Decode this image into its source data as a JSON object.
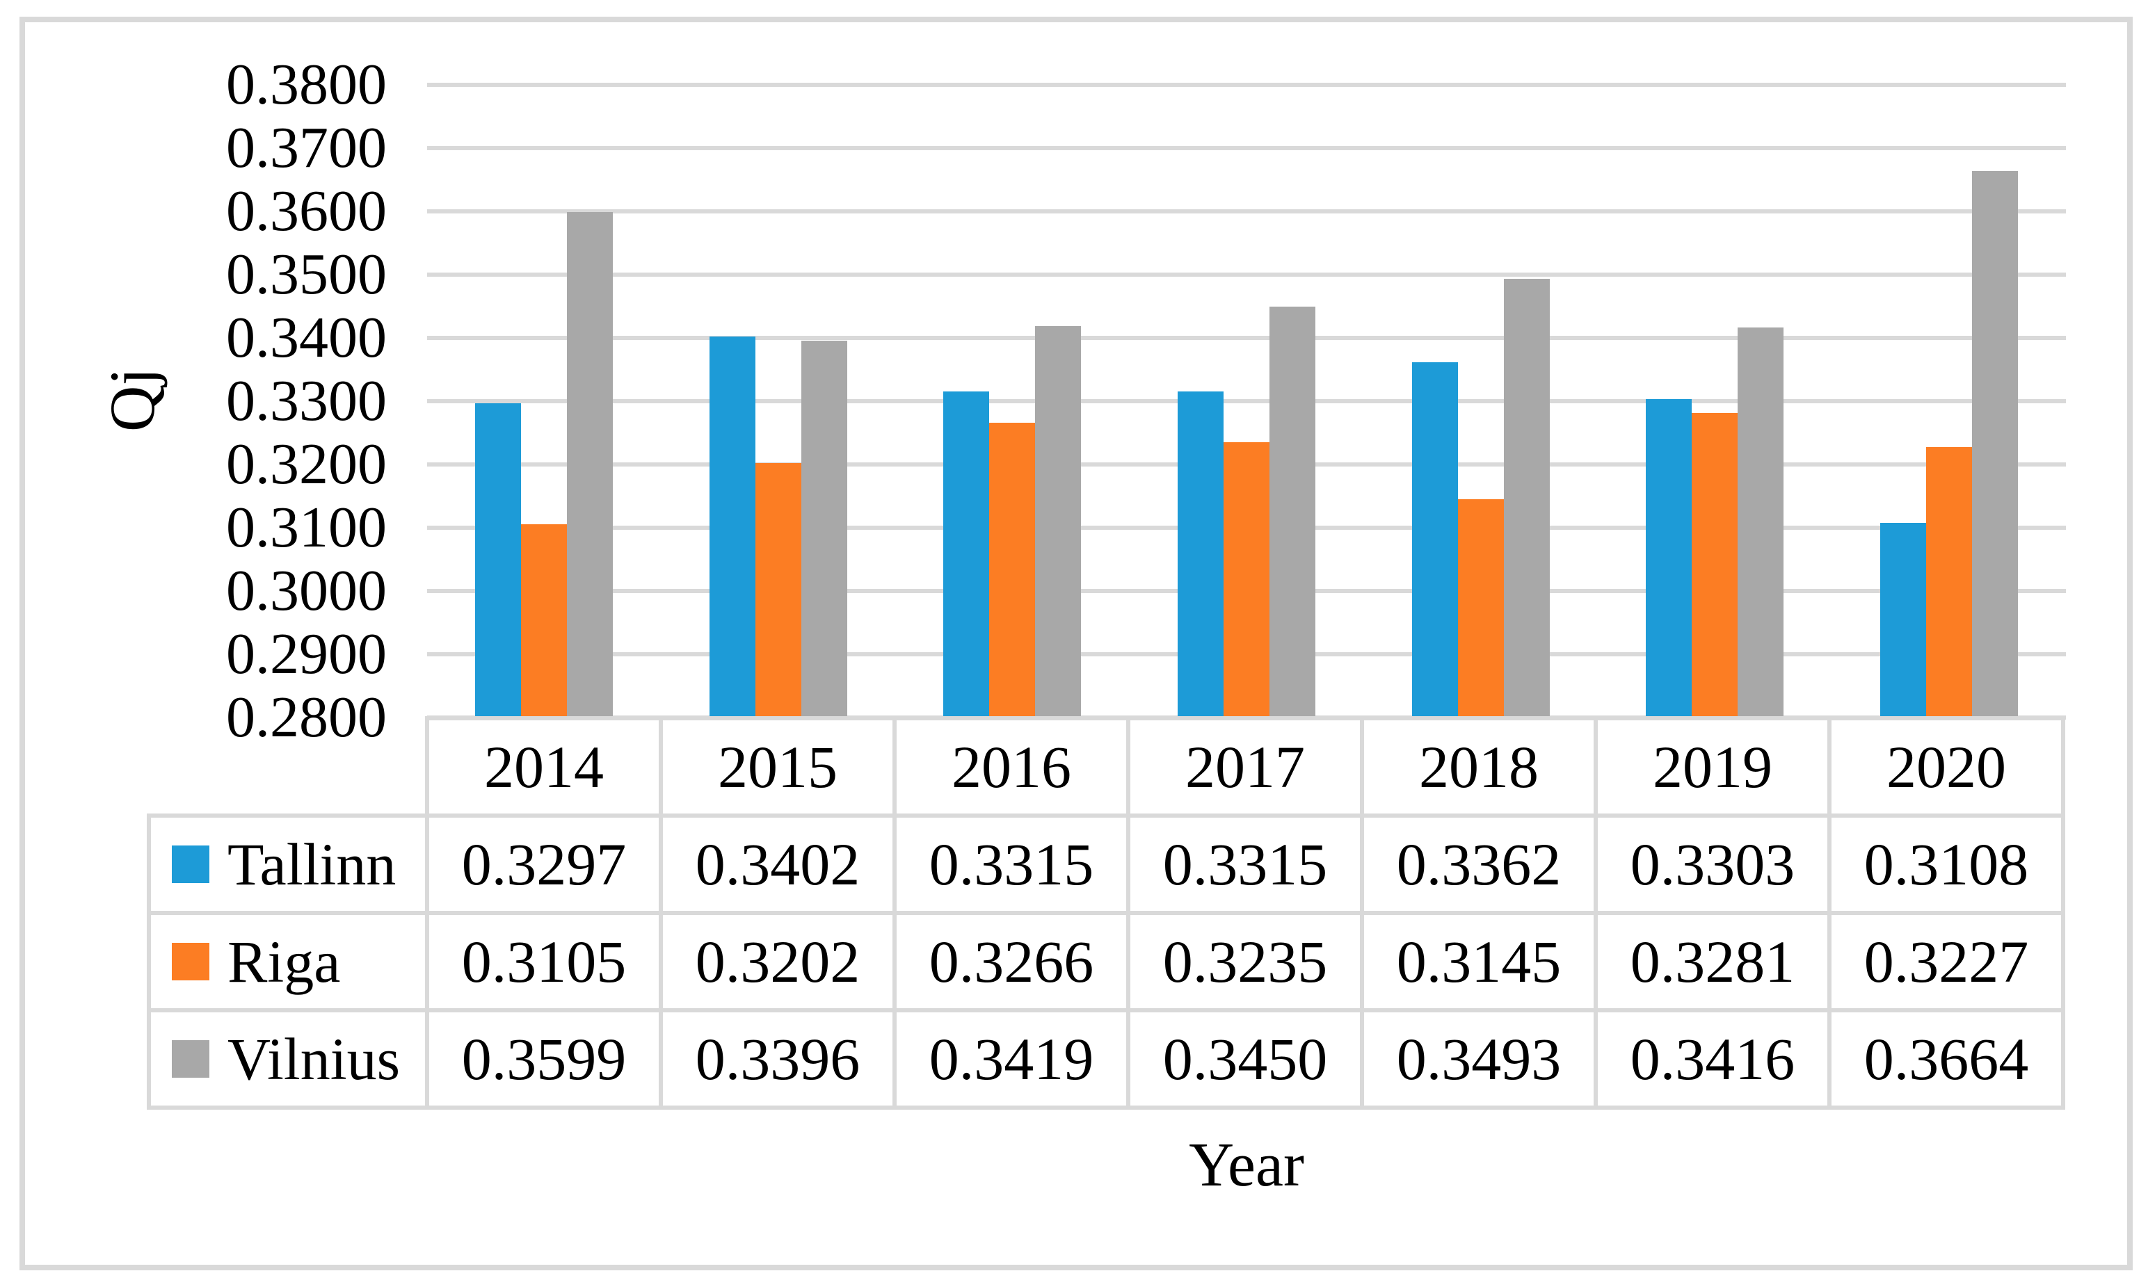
{
  "chart_data": {
    "type": "bar",
    "title": "",
    "xlabel": "Year",
    "ylabel": "Qj",
    "categories": [
      "2014",
      "2015",
      "2016",
      "2017",
      "2018",
      "2019",
      "2020"
    ],
    "series": [
      {
        "name": "Tallinn",
        "color": "#1D9BD7",
        "values": [
          0.3297,
          0.3402,
          0.3315,
          0.3315,
          0.3362,
          0.3303,
          0.3108
        ]
      },
      {
        "name": "Riga",
        "color": "#FC7D23",
        "values": [
          0.3105,
          0.3202,
          0.3266,
          0.3235,
          0.3145,
          0.3281,
          0.3227
        ]
      },
      {
        "name": "Vilnius",
        "color": "#A8A8A8",
        "values": [
          0.3599,
          0.3396,
          0.3419,
          0.345,
          0.3493,
          0.3416,
          0.3664
        ]
      }
    ],
    "ylim": [
      0.28,
      0.38
    ],
    "ytick_step": 0.01,
    "ytick_decimals": 4,
    "value_decimals": 4,
    "grid": true,
    "legend_position": "table-left",
    "gridline_color": "#D9D9D9",
    "table_border_color": "#D9D9D9",
    "figure_border_color": "#D9D9D9",
    "background_color": "#FFFFFF"
  }
}
